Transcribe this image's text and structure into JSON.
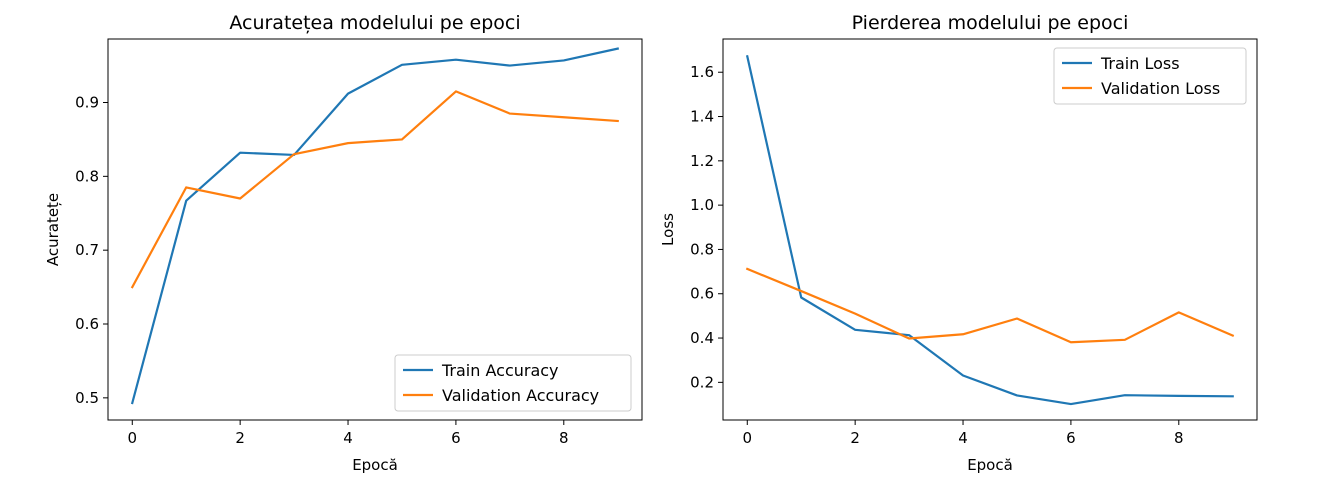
{
  "chart_data": [
    {
      "type": "line",
      "title": "Acuratețea modelului pe epoci",
      "xlabel": "Epocă",
      "ylabel": "Acuratețe",
      "x": [
        0,
        1,
        2,
        3,
        4,
        5,
        6,
        7,
        8,
        9
      ],
      "xlim": [
        -0.45,
        9.45
      ],
      "ylim": [
        0.47,
        0.986
      ],
      "xticks": [
        0,
        2,
        4,
        6,
        8
      ],
      "yticks": [
        0.5,
        0.6,
        0.7,
        0.8,
        0.9
      ],
      "ytick_labels": [
        "0.5",
        "0.6",
        "0.7",
        "0.8",
        "0.9"
      ],
      "grid": false,
      "legend_position": "bottom-right",
      "series": [
        {
          "name": "Train Accuracy",
          "color": "#1f77b4",
          "values": [
            0.493,
            0.767,
            0.832,
            0.829,
            0.912,
            0.951,
            0.958,
            0.95,
            0.957,
            0.973
          ]
        },
        {
          "name": "Validation Accuracy",
          "color": "#ff7f0e",
          "values": [
            0.65,
            0.785,
            0.77,
            0.83,
            0.845,
            0.85,
            0.915,
            0.885,
            0.88,
            0.875
          ]
        }
      ]
    },
    {
      "type": "line",
      "title": "Pierderea modelului pe epoci",
      "xlabel": "Epocă",
      "ylabel": "Loss",
      "x": [
        0,
        1,
        2,
        3,
        4,
        5,
        6,
        7,
        8,
        9
      ],
      "xlim": [
        -0.45,
        9.45
      ],
      "ylim": [
        0.03,
        1.75
      ],
      "xticks": [
        0,
        2,
        4,
        6,
        8
      ],
      "yticks": [
        0.2,
        0.4,
        0.6,
        0.8,
        1.0,
        1.2,
        1.4,
        1.6
      ],
      "ytick_labels": [
        "0.2",
        "0.4",
        "0.6",
        "0.8",
        "1.0",
        "1.2",
        "1.4",
        "1.6"
      ],
      "grid": false,
      "legend_position": "top-right",
      "series": [
        {
          "name": "Train Loss",
          "color": "#1f77b4",
          "values": [
            1.672,
            0.583,
            0.437,
            0.413,
            0.231,
            0.141,
            0.102,
            0.142,
            0.139,
            0.137
          ]
        },
        {
          "name": "Validation Loss",
          "color": "#ff7f0e",
          "values": [
            0.712,
            0.612,
            0.51,
            0.398,
            0.417,
            0.488,
            0.381,
            0.392,
            0.516,
            0.411
          ]
        }
      ]
    }
  ]
}
